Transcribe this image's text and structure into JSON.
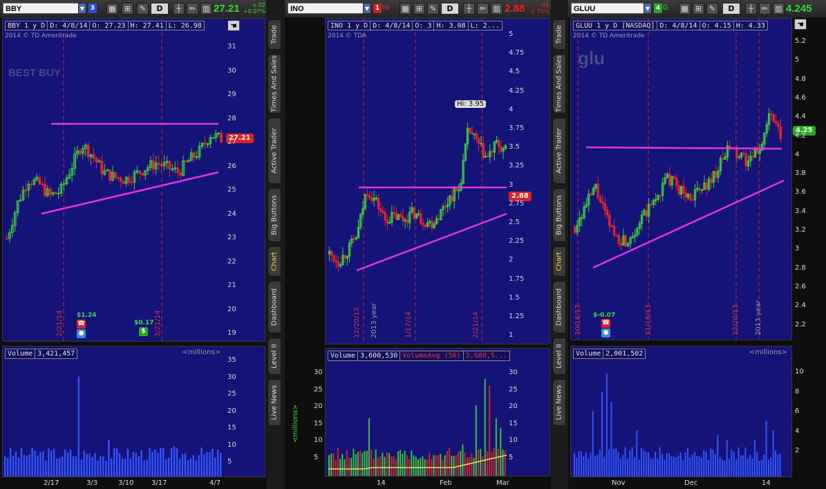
{
  "panels": [
    {
      "symbol": "BBY",
      "link": "3",
      "last": "27.21",
      "change": "+.02",
      "change_pct": "+0.07%",
      "header": [
        "BBY 1 y D",
        "D: 4/8/14",
        "O: 27.23",
        "H: 27.41",
        "L: 26.98"
      ],
      "copyright": "2014 © TD Ameritrade",
      "watermark": "BEST BUY",
      "price_tag": "27.21",
      "yticks": [
        "31",
        "30",
        "29",
        "28",
        "27",
        "26",
        "25",
        "24",
        "23",
        "22",
        "21",
        "20",
        "19"
      ],
      "date_markers": [
        "2/21/14",
        "3/21/14"
      ],
      "events": [
        {
          "label": "$1.24"
        },
        {
          "label": "$0.17"
        }
      ],
      "volume_label": "Volume",
      "volume_value": "3,421,457",
      "volume_unit": "<millions>",
      "vol_ticks": [
        "35",
        "30",
        "25",
        "20",
        "15",
        "10",
        "5"
      ],
      "xticks": [
        "2/17",
        "3/3",
        "3/10",
        "3/17",
        "4/7"
      ]
    },
    {
      "symbol": "INO",
      "link": "1",
      "link_name": "IN",
      "last": "2.88",
      "change": "-.08",
      "change_pct": "-2.70%",
      "header": [
        "INO 1 y D",
        "D: 4/8/14",
        "O: 3",
        "H: 3.08",
        "L: 2..."
      ],
      "copyright": "2014 © TDA",
      "hi_label": "Hi: 3.95",
      "price_tag": "2.88",
      "yticks": [
        "5",
        "4.75",
        "4.5",
        "4.25",
        "4",
        "3.75",
        "3.5",
        "3.25",
        "3",
        "2.75",
        "2.5",
        "2.25",
        "2",
        "1.75",
        "1.5",
        "1.25",
        "1"
      ],
      "date_markers": [
        "12/20/13",
        "1/17/14",
        "2/21/14"
      ],
      "year_label": "2013 year",
      "volume_label": "Volume",
      "volume_value": "3,600,530",
      "volavg_label": "VolumeAvg (50)",
      "volavg_value": "3,600,5...",
      "vol_unit_left": "<millions>",
      "vol_ticks": [
        "30",
        "25",
        "20",
        "15",
        "10",
        "5"
      ],
      "xticks": [
        "14",
        "Feb",
        "Mar"
      ]
    },
    {
      "symbol": "GLUU",
      "link": "4",
      "link_name": "G",
      "last": "4.245",
      "header": [
        "GLUU 1 y D [NASDAQ]",
        "D: 4/8/14",
        "O: 4.15",
        "H: 4.33"
      ],
      "copyright": "2014 © TD Ameritrade",
      "watermark": "glu",
      "price_tag": "4.25",
      "yticks": [
        "5.2",
        "5",
        "4.8",
        "4.6",
        "4.4",
        "4.2",
        "4",
        "3.8",
        "3.6",
        "3.4",
        "3.2",
        "3",
        "2.8",
        "2.6",
        "2.4",
        "2.2"
      ],
      "date_markers": [
        "10/18/13",
        "11/15/13",
        "12/20/13"
      ],
      "year_label": "2013 year",
      "events": [
        {
          "label": "$-0.07"
        }
      ],
      "volume_label": "Volume",
      "volume_value": "2,001,502",
      "volume_unit": "<millions>",
      "vol_ticks": [
        "10",
        "8",
        "6",
        "4",
        "2"
      ],
      "xticks": [
        "Nov",
        "Dec",
        "14"
      ]
    }
  ],
  "side_tabs": [
    "Trade",
    "Times And Sales",
    "Active Trader",
    "Big Buttons",
    "Chart",
    "Dashboard",
    "Level II",
    "Live News"
  ],
  "colors": {
    "up": "#33dd33",
    "down": "#ee2222",
    "trend": "#e633e6",
    "bg": "#141478",
    "vol": "#3355ff"
  }
}
